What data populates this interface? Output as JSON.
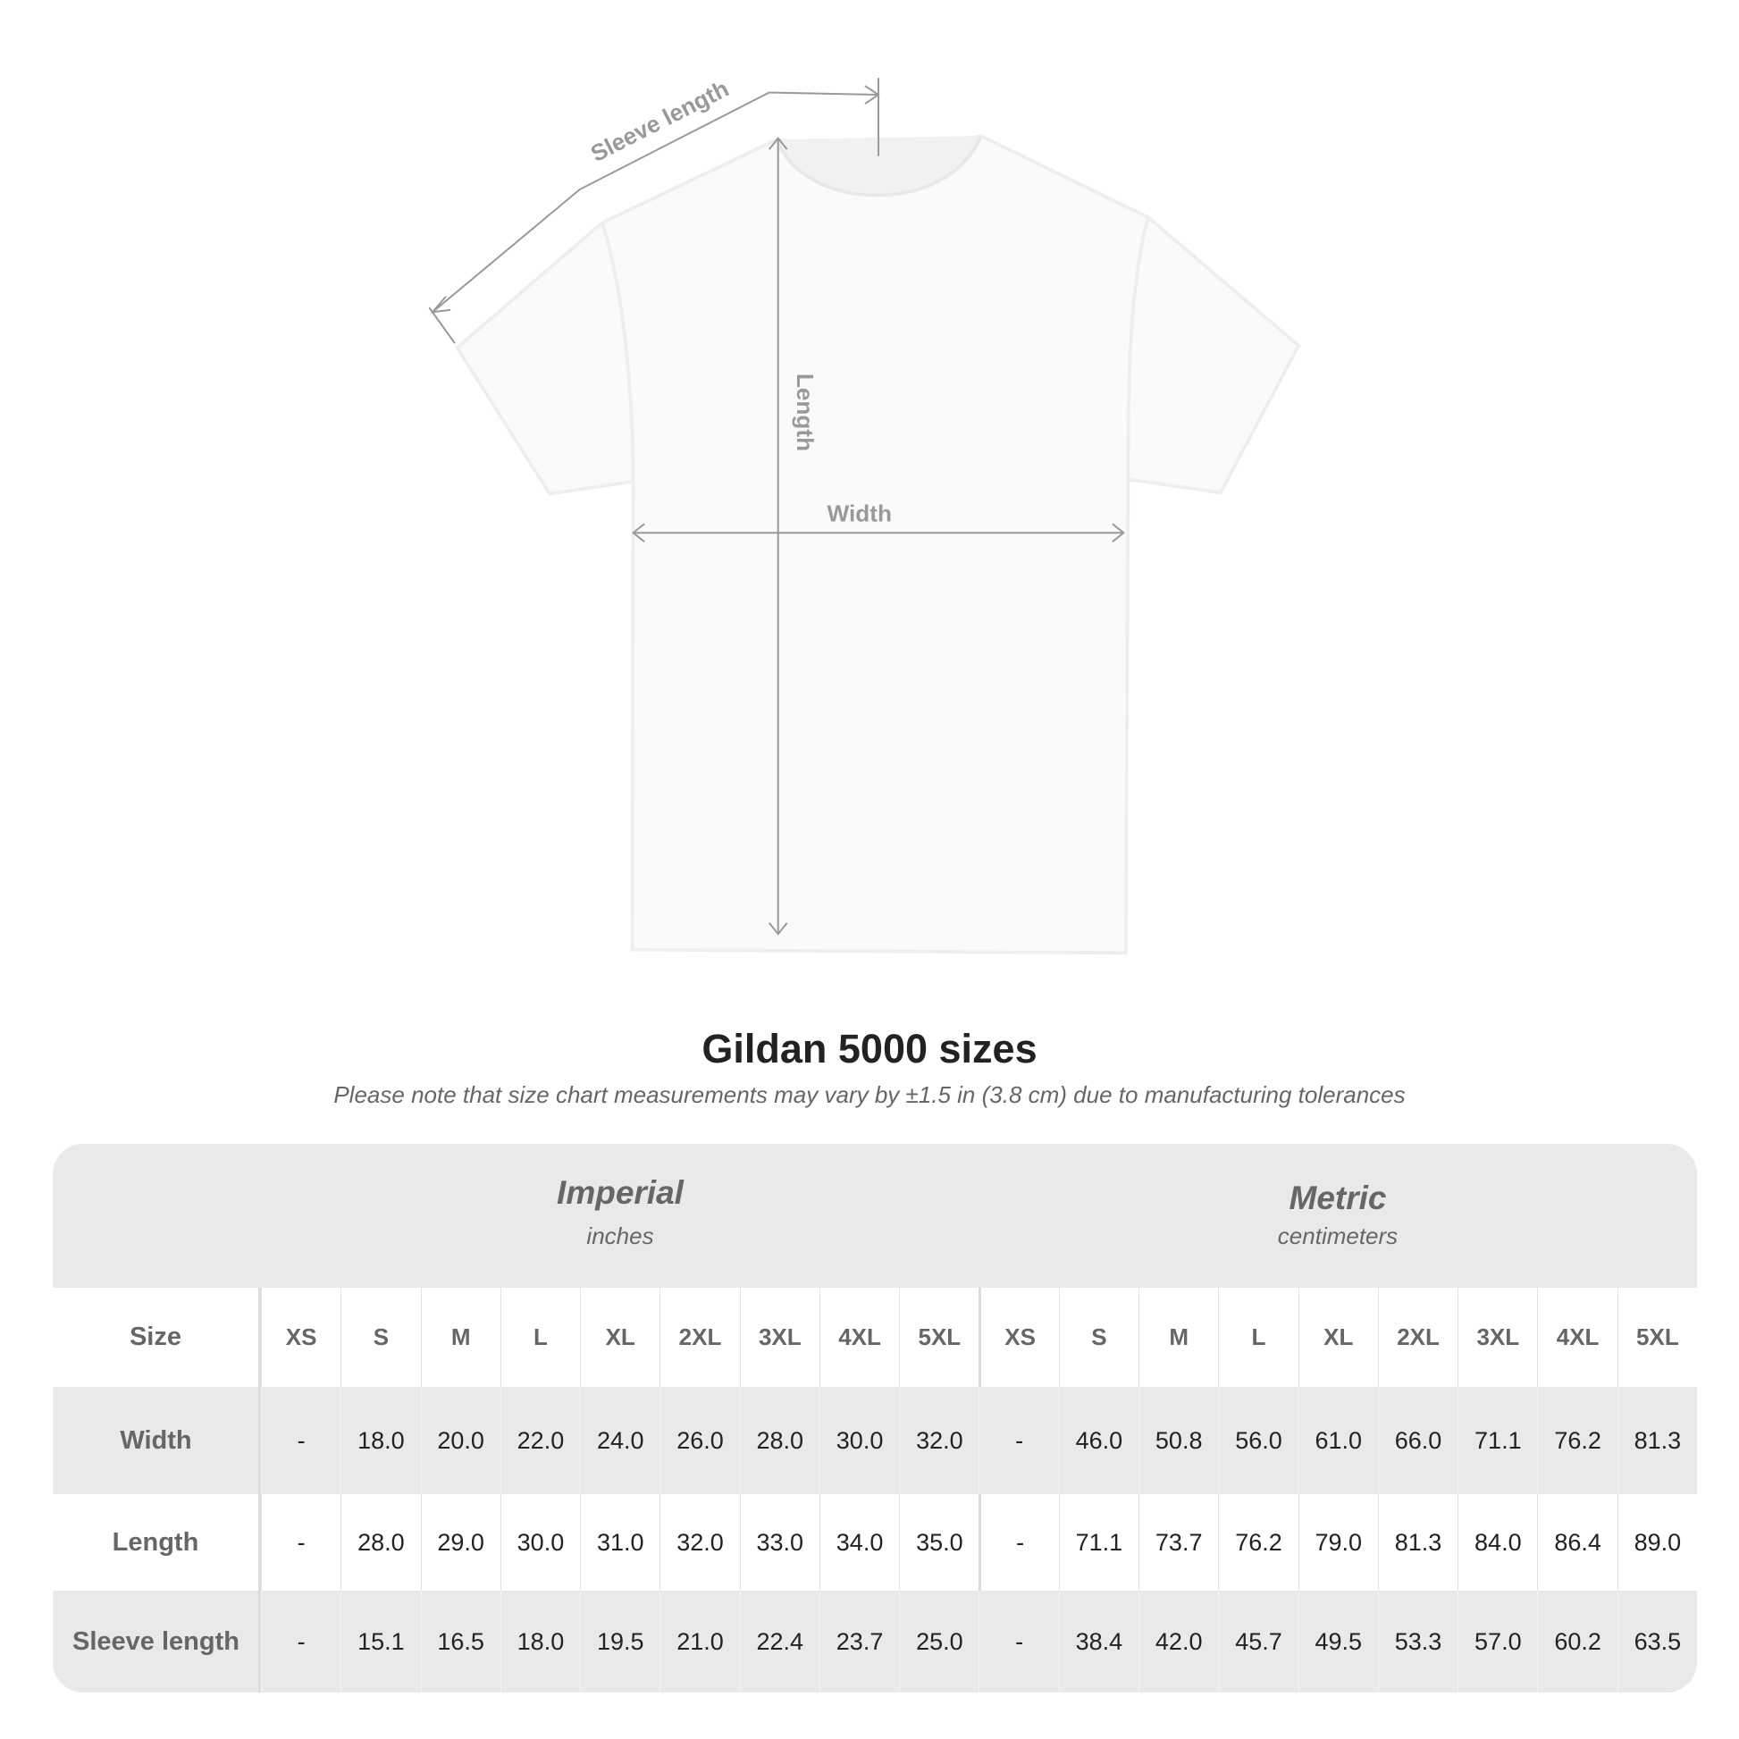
{
  "diagram": {
    "sleeve_label": "Sleeve length",
    "length_label": "Length",
    "width_label": "Width"
  },
  "title": "Gildan 5000 sizes",
  "note": "Please note that size chart measurements may vary by ±1.5 in (3.8 cm) due to manufacturing tolerances",
  "table": {
    "imperial": {
      "label": "Imperial",
      "unit": "inches"
    },
    "metric": {
      "label": "Metric",
      "unit": "centimeters"
    },
    "size_label": "Size",
    "sizes": [
      "XS",
      "S",
      "M",
      "L",
      "XL",
      "2XL",
      "3XL",
      "4XL",
      "5XL"
    ],
    "rows": [
      {
        "label": "Width",
        "imperial": [
          "-",
          "18.0",
          "20.0",
          "22.0",
          "24.0",
          "26.0",
          "28.0",
          "30.0",
          "32.0"
        ],
        "metric": [
          "-",
          "46.0",
          "50.8",
          "56.0",
          "61.0",
          "66.0",
          "71.1",
          "76.2",
          "81.3"
        ]
      },
      {
        "label": "Length",
        "imperial": [
          "-",
          "28.0",
          "29.0",
          "30.0",
          "31.0",
          "32.0",
          "33.0",
          "34.0",
          "35.0"
        ],
        "metric": [
          "-",
          "71.1",
          "73.7",
          "76.2",
          "79.0",
          "81.3",
          "84.0",
          "86.4",
          "89.0"
        ]
      },
      {
        "label": "Sleeve length",
        "imperial": [
          "-",
          "15.1",
          "16.5",
          "18.0",
          "19.5",
          "21.0",
          "22.4",
          "23.7",
          "25.0"
        ],
        "metric": [
          "-",
          "38.4",
          "42.0",
          "45.7",
          "49.5",
          "53.3",
          "57.0",
          "60.2",
          "63.5"
        ]
      }
    ]
  },
  "colors": {
    "header_bg": "#e9e9e9",
    "label_text": "#666666",
    "value_text": "#222222",
    "measure_line": "#999999"
  }
}
